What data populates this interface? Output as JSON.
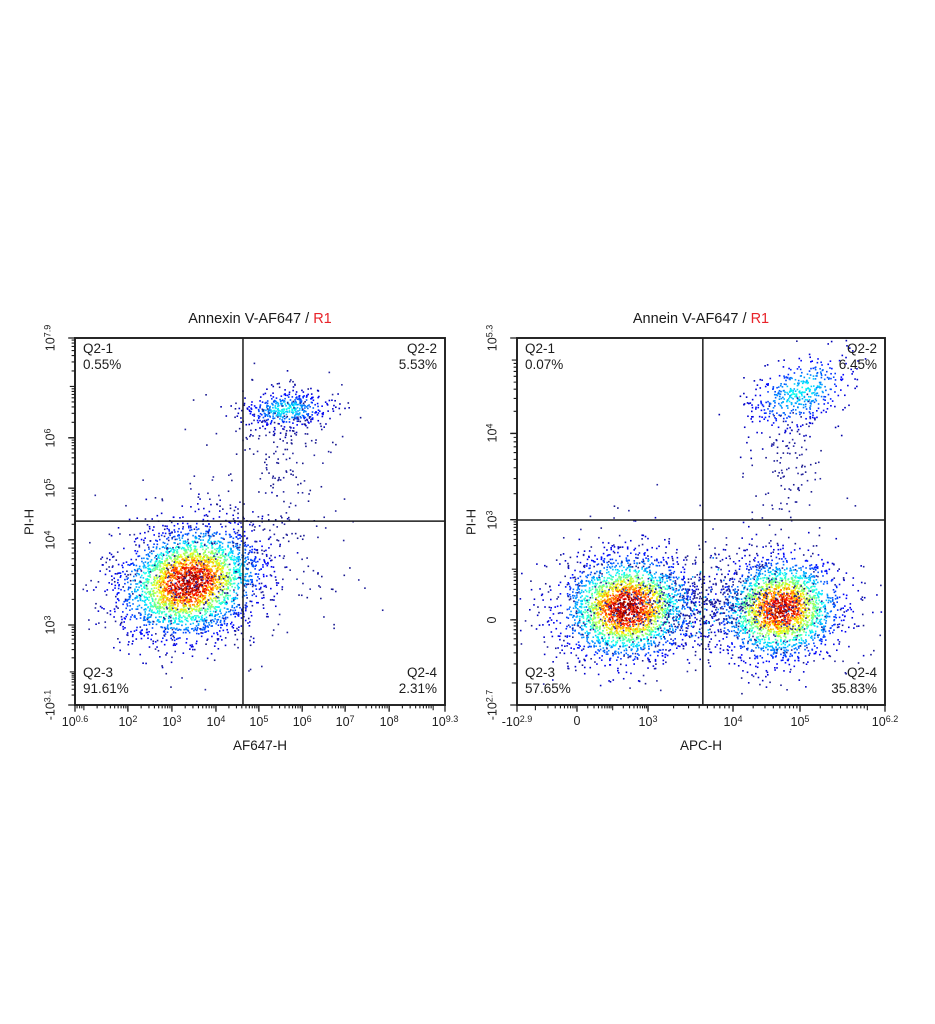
{
  "styles": {
    "gate_color": "#e8232a",
    "text_color": "#1a1a1a",
    "line_color": "#1c1c1c",
    "frame_color": "#1c1c1c",
    "sparse_point_colors": [
      "#1d1d99",
      "#26269f",
      "#17178c"
    ]
  },
  "chart_data": [
    {
      "type": "scatter",
      "subtype": "flow_cytometry_pseudocolor_density",
      "title": {
        "main": "Annexin V-AF647 /",
        "gate": "R1"
      },
      "xlabel": "AF647-H",
      "ylabel": "PI-H",
      "grid": false,
      "legend": "none",
      "seed": 1337,
      "x_axis": {
        "scale": "biexponential",
        "ticks": [
          {
            "t": "10",
            "e": "0.6",
            "p": 0.0
          },
          {
            "t": "10",
            "e": "2",
            "p": 0.143
          },
          {
            "t": "10",
            "e": "3",
            "p": 0.262
          },
          {
            "t": "10",
            "e": "4",
            "p": 0.381
          },
          {
            "t": "10",
            "e": "5",
            "p": 0.497
          },
          {
            "t": "10",
            "e": "6",
            "p": 0.614
          },
          {
            "t": "10",
            "e": "7",
            "p": 0.73
          },
          {
            "t": "10",
            "e": "8",
            "p": 0.849
          },
          {
            "t": "10",
            "e": "9.3",
            "p": 1.0
          }
        ],
        "decades": [
          -0.095,
          0.024,
          0.143,
          0.262,
          0.381,
          0.497,
          0.614,
          0.73,
          0.849,
          0.968,
          1.087
        ]
      },
      "y_axis": {
        "scale": "biexponential",
        "ticks": [
          {
            "t": "-10",
            "e": "3.1",
            "p": 0.0
          },
          {
            "t": "10",
            "e": "3",
            "p": 0.218
          },
          {
            "t": "10",
            "e": "4",
            "p": 0.45
          },
          {
            "t": "10",
            "e": "5",
            "p": 0.591
          },
          {
            "t": "10",
            "e": "6",
            "p": 0.728
          },
          {
            "t": "10",
            "e": "7.9",
            "p": 1.0
          }
        ],
        "decades": [
          0.0,
          0.09,
          0.218,
          0.45,
          0.591,
          0.728,
          0.868,
          1.008
        ]
      },
      "quadrants": {
        "v_line": 0.454,
        "h_line": 0.501,
        "labels": [
          {
            "name": "Q2-1",
            "value": "0.55%",
            "corner": "top-left"
          },
          {
            "name": "Q2-2",
            "value": "5.53%",
            "corner": "top-right"
          },
          {
            "name": "Q2-3",
            "value": "91.61%",
            "corner": "bottom-left"
          },
          {
            "name": "Q2-4",
            "value": "2.31%",
            "corner": "bottom-right"
          }
        ]
      },
      "clusters": [
        {
          "label": "viable-main-population",
          "cx": 0.311,
          "cy": 0.335,
          "sx": 0.09,
          "sy": 0.072,
          "rho": 0.18,
          "n": 3000,
          "palette": "hot"
        },
        {
          "label": "viable-halo",
          "cx": 0.315,
          "cy": 0.335,
          "sx": 0.15,
          "sy": 0.115,
          "rho": 0.15,
          "n": 320,
          "palette": "sparse"
        },
        {
          "label": "late-apoptotic-cluster",
          "cx": 0.572,
          "cy": 0.805,
          "sx": 0.06,
          "sy": 0.026,
          "rho": 0.1,
          "n": 430,
          "palette": "cool"
        },
        {
          "label": "late-apoptotic-halo",
          "cx": 0.565,
          "cy": 0.76,
          "sx": 0.085,
          "sy": 0.055,
          "rho": 0.0,
          "n": 120,
          "palette": "sparse"
        },
        {
          "label": "apoptotic-trail",
          "cx": 0.556,
          "cy": 0.63,
          "sx": 0.05,
          "sy": 0.085,
          "rho": 0.0,
          "n": 60,
          "palette": "sparse"
        },
        {
          "label": "early-apoptotic-scatter",
          "cx": 0.53,
          "cy": 0.4,
          "sx": 0.11,
          "sy": 0.09,
          "rho": 0.0,
          "n": 110,
          "palette": "sparse"
        },
        {
          "label": "q2-1-scatter",
          "cx": 0.42,
          "cy": 0.56,
          "sx": 0.06,
          "sy": 0.045,
          "rho": 0.0,
          "n": 18,
          "palette": "sparse"
        }
      ]
    },
    {
      "type": "scatter",
      "subtype": "flow_cytometry_pseudocolor_density",
      "title": {
        "main": "Annein V-AF647 /",
        "gate": "R1"
      },
      "xlabel": "APC-H",
      "ylabel": "PI-H",
      "grid": false,
      "legend": "none",
      "seed": 4242,
      "x_axis": {
        "scale": "biexponential",
        "ticks": [
          {
            "t": "-10",
            "e": "2.9",
            "p": 0.0
          },
          {
            "t": "0",
            "e": "",
            "p": 0.163
          },
          {
            "t": "10",
            "e": "3",
            "p": 0.356
          },
          {
            "t": "10",
            "e": "4",
            "p": 0.587
          },
          {
            "t": "10",
            "e": "5",
            "p": 0.769
          },
          {
            "t": "10",
            "e": "6.2",
            "p": 1.0
          }
        ],
        "decades": [
          0.05,
          0.163,
          0.26,
          0.356,
          0.587,
          0.769,
          0.952,
          1.135
        ]
      },
      "y_axis": {
        "scale": "biexponential",
        "ticks": [
          {
            "t": "-10",
            "e": "2.7",
            "p": 0.0
          },
          {
            "t": "0",
            "e": "",
            "p": 0.232
          },
          {
            "t": "10",
            "e": "3",
            "p": 0.505
          },
          {
            "t": "10",
            "e": "4",
            "p": 0.74
          },
          {
            "t": "10",
            "e": "5.3",
            "p": 1.0
          }
        ],
        "decades": [
          0.06,
          0.232,
          0.37,
          0.505,
          0.74,
          0.94,
          1.14
        ]
      },
      "quadrants": {
        "v_line": 0.505,
        "h_line": 0.504,
        "labels": [
          {
            "name": "Q2-1",
            "value": "0.07%",
            "corner": "top-left"
          },
          {
            "name": "Q2-2",
            "value": "6.45%",
            "corner": "top-right"
          },
          {
            "name": "Q2-3",
            "value": "57.65%",
            "corner": "bottom-left"
          },
          {
            "name": "Q2-4",
            "value": "35.83%",
            "corner": "bottom-right"
          }
        ]
      },
      "clusters": [
        {
          "label": "negative-population",
          "cx": 0.3,
          "cy": 0.265,
          "sx": 0.085,
          "sy": 0.068,
          "rho": 0.05,
          "n": 2600,
          "palette": "hot"
        },
        {
          "label": "negative-halo",
          "cx": 0.3,
          "cy": 0.27,
          "sx": 0.14,
          "sy": 0.105,
          "rho": 0.0,
          "n": 280,
          "palette": "sparse"
        },
        {
          "label": "apc-positive-population",
          "cx": 0.715,
          "cy": 0.262,
          "sx": 0.08,
          "sy": 0.066,
          "rho": 0.05,
          "n": 2300,
          "palette": "hot",
          "vmax": 0.95
        },
        {
          "label": "apc-positive-halo",
          "cx": 0.715,
          "cy": 0.268,
          "sx": 0.13,
          "sy": 0.1,
          "rho": 0.0,
          "n": 260,
          "palette": "sparse"
        },
        {
          "label": "bridge-population",
          "cx": 0.505,
          "cy": 0.27,
          "sx": 0.105,
          "sy": 0.048,
          "rho": 0.0,
          "n": 420,
          "palette": "coolsparse"
        },
        {
          "label": "double-positive-cluster",
          "cx": 0.77,
          "cy": 0.852,
          "sx": 0.072,
          "sy": 0.055,
          "rho": 0.45,
          "n": 470,
          "palette": "cool"
        },
        {
          "label": "double-positive-trail",
          "cx": 0.745,
          "cy": 0.66,
          "sx": 0.048,
          "sy": 0.1,
          "rho": 0.15,
          "n": 110,
          "palette": "sparse"
        },
        {
          "label": "upper-sparse-scatter",
          "cx": 0.52,
          "cy": 0.43,
          "sx": 0.22,
          "sy": 0.07,
          "rho": 0.0,
          "n": 45,
          "palette": "sparse"
        }
      ]
    }
  ]
}
